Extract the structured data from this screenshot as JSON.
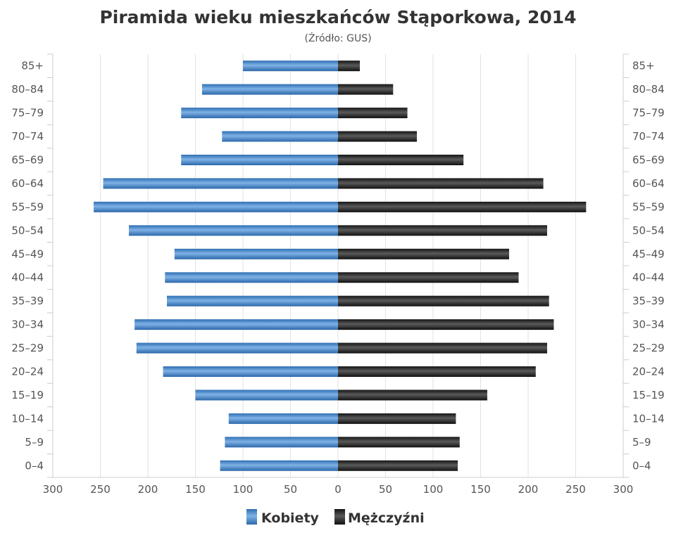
{
  "colors": {
    "female": "#3f7fc4",
    "male": "#222222",
    "grid": "#e2e2e2",
    "axis": "#cccccc"
  },
  "chart_data": {
    "type": "bar",
    "orientation": "horizontal",
    "layout": "population-pyramid",
    "title": "Piramida wieku mieszkańców Stąporkowa, 2014",
    "subtitle": "(Źródło: GUS)",
    "categories": [
      "0–4",
      "5–9",
      "10–14",
      "15–19",
      "20–24",
      "25–29",
      "30–34",
      "35–39",
      "40–44",
      "45–49",
      "50–54",
      "55–59",
      "60–64",
      "65–69",
      "70–74",
      "75–79",
      "80–84",
      "85+"
    ],
    "series": [
      {
        "name": "Kobiety",
        "side": "left",
        "values": [
          124,
          119,
          115,
          150,
          184,
          212,
          214,
          180,
          182,
          172,
          220,
          257,
          247,
          165,
          122,
          165,
          143,
          100
        ]
      },
      {
        "name": "Mężczyźni",
        "side": "right",
        "values": [
          126,
          128,
          124,
          157,
          208,
          220,
          227,
          222,
          190,
          180,
          220,
          261,
          216,
          132,
          83,
          73,
          58,
          23
        ]
      }
    ],
    "xlim": [
      -300,
      300
    ],
    "x_ticks": [
      -300,
      -250,
      -200,
      -150,
      -100,
      -50,
      0,
      50,
      100,
      150,
      200,
      250,
      300
    ],
    "x_tick_labels": [
      "300",
      "250",
      "200",
      "150",
      "100",
      "50",
      "0",
      "50",
      "100",
      "150",
      "200",
      "250",
      "300"
    ],
    "grid": true,
    "legend": "bottom-center"
  }
}
